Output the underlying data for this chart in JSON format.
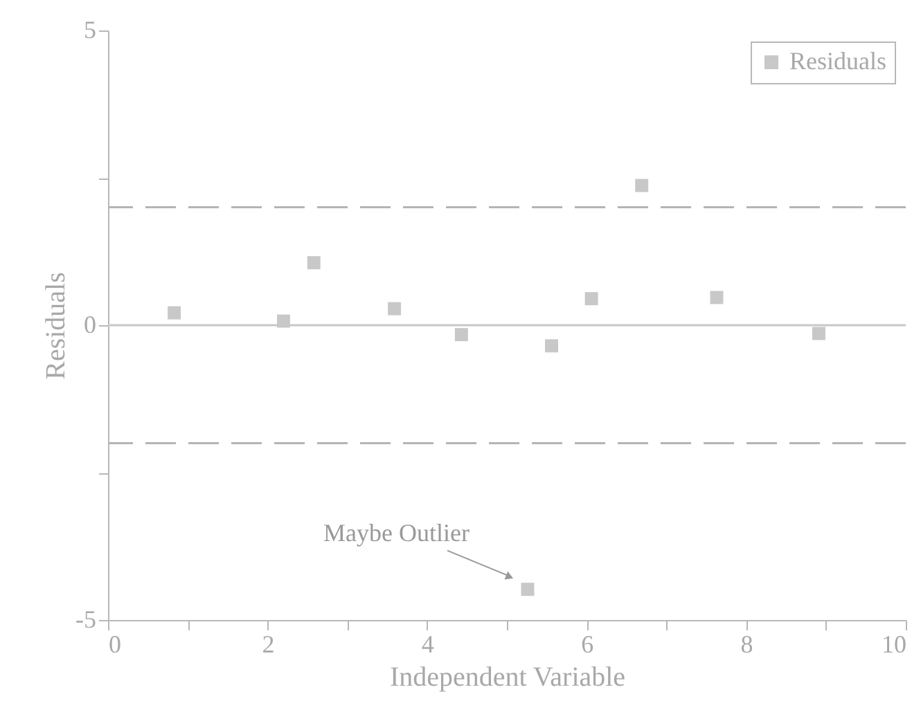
{
  "chart_data": {
    "type": "scatter",
    "xlabel": "Independent Variable",
    "ylabel": "Residuals",
    "x": [
      0.83,
      2.2,
      2.58,
      3.59,
      4.43,
      5.26,
      5.56,
      6.06,
      6.69,
      7.63,
      8.91
    ],
    "series": [
      {
        "name": "Residuals",
        "color": "#c8c8c8",
        "values": [
          0.21,
          0.07,
          1.06,
          0.28,
          -0.16,
          -4.48,
          -0.35,
          0.45,
          2.37,
          0.47,
          -0.14
        ]
      }
    ],
    "xlim": [
      0,
      10
    ],
    "xticks": [
      0,
      {
        "value": 1,
        "label": null
      },
      2,
      {
        "value": 3,
        "label": null
      },
      4,
      {
        "value": 5,
        "label": null
      },
      6,
      {
        "value": 7,
        "label": null
      },
      8,
      {
        "value": 9,
        "label": null
      },
      10
    ],
    "ylim": [
      -5,
      5
    ],
    "yticks": [
      -5,
      {
        "value": -2.5,
        "label": null
      },
      0,
      {
        "value": 2.5,
        "label": null
      },
      5
    ],
    "ref_lines": [
      {
        "axis": "y",
        "value": 2,
        "color": "#b4b4b4",
        "line_style": "dashed"
      },
      {
        "axis": "y",
        "value": 0,
        "color": "#c8c8c8",
        "line_style": "solid"
      },
      {
        "axis": "y",
        "value": -2,
        "color": "#b4b4b4",
        "line_style": "dashed"
      }
    ],
    "annotations": [
      {
        "text": "Maybe Outlier",
        "x": 5.26,
        "y": -4.48
      }
    ],
    "marker": "square",
    "grid": false,
    "legend": "top right"
  }
}
